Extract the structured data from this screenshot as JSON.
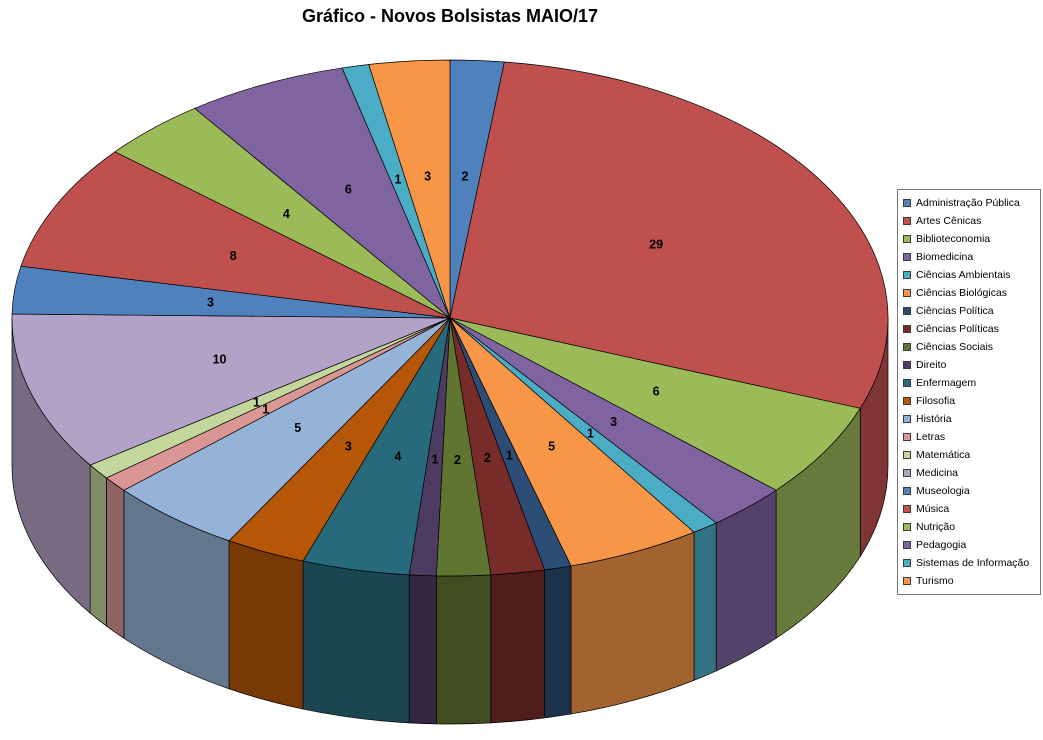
{
  "title": "Gráfico - Novos Bolsistas MAIO/17",
  "chart_data": {
    "type": "pie",
    "style": "3d-pie",
    "title": "Gráfico - Novos Bolsistas MAIO/17",
    "legend_position": "right",
    "data_labels": "values",
    "total": 101,
    "categories": [
      "Administração Pública",
      "Artes Cênicas",
      "Biblioteconomia",
      "Biomedicina",
      "Ciências Ambientais",
      "Ciências Biológicas",
      "Ciências Política",
      "Ciências Políticas",
      "Ciências Sociais",
      "Direito",
      "Enfermagem",
      "Filosofia",
      "História",
      "Letras",
      "Matemática",
      "Medicina",
      "Museologia",
      "Música",
      "Nutrição",
      "Pedagogia",
      "Sistemas de Informação",
      "Turismo"
    ],
    "values": [
      2,
      29,
      6,
      3,
      1,
      5,
      1,
      2,
      2,
      1,
      4,
      3,
      5,
      1,
      1,
      10,
      3,
      8,
      4,
      6,
      1,
      3
    ],
    "colors": [
      "#4F81BD",
      "#C0504D",
      "#9BBB59",
      "#8064A2",
      "#4BACC6",
      "#F79646",
      "#2C4D75",
      "#772C2A",
      "#5F7530",
      "#4D3B62",
      "#276A7C",
      "#B65708",
      "#95B3D7",
      "#D99694",
      "#C3D69B",
      "#B3A2C7",
      "#4F81BD",
      "#C0504D",
      "#9BBB59",
      "#8064A2",
      "#4BACC6",
      "#F79646"
    ]
  }
}
